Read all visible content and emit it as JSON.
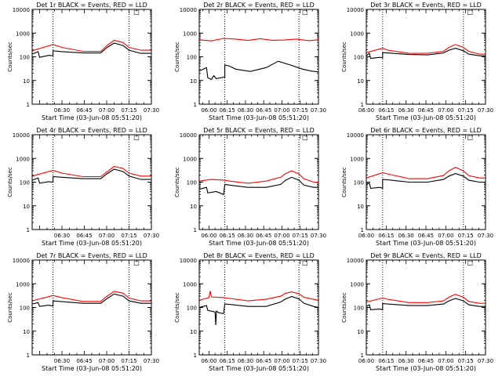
{
  "chart_data": [
    {
      "type": "line",
      "title": "Det 1r BLACK = Events, RED = LLD",
      "xlabel": "Start Time (03-Jun-08 05:51:20)",
      "ylabel": "Counts/sec",
      "x_ticks": [
        "06:30",
        "06:45",
        "07:00",
        "07:15",
        "07:30"
      ],
      "x_range": [
        21.0,
        101.0
      ],
      "xscale": "linear",
      "ylim": [
        1,
        10000
      ],
      "yscale": "log",
      "y_ticks": [
        "1",
        "10",
        "100",
        "1000",
        "10000"
      ],
      "dotted_lines_x": [
        35.0,
        86.0
      ],
      "marker_label": "□",
      "marker_x": 91.0,
      "series": [
        {
          "color": "#ff0000",
          "x": [
            21,
            35,
            41,
            55,
            67,
            71,
            76,
            82,
            86,
            94,
            101
          ],
          "values": [
            180,
            330,
            250,
            170,
            170,
            290,
            500,
            400,
            250,
            190,
            190
          ]
        },
        {
          "color": "#000000",
          "x": [
            21,
            25,
            26,
            32,
            35,
            35,
            41,
            55,
            67,
            71,
            76,
            82,
            86,
            94,
            101
          ],
          "values": [
            130,
            165,
            95,
            115,
            110,
            180,
            165,
            145,
            145,
            240,
            380,
            300,
            190,
            140,
            140
          ]
        }
      ]
    },
    {
      "type": "line",
      "title": "Det 2r BLACK = Events, RED = LLD",
      "xlabel": "Start Time (03-Jun-08 05:51:20)",
      "ylabel": "Counts/sec",
      "x_ticks": [
        "06:00",
        "06:15",
        "06:30",
        "06:45",
        "07:00",
        "07:15",
        "07:30"
      ],
      "x_range": [
        0.0,
        98.0
      ],
      "xscale": "linear",
      "ylim": [
        1,
        10000
      ],
      "yscale": "log",
      "y_ticks": [
        "1",
        "10",
        "100",
        "1000",
        "10000"
      ],
      "dotted_lines_x": [
        21.0,
        82.0
      ],
      "marker_label": "□",
      "marker_x": 87.0,
      "series": [
        {
          "color": "#ff0000",
          "x": [
            0,
            10,
            20,
            30,
            40,
            50,
            60,
            70,
            80,
            90,
            98
          ],
          "values": [
            520,
            470,
            600,
            560,
            490,
            580,
            500,
            510,
            560,
            480,
            520
          ]
        },
        {
          "color": "#000000",
          "x": [
            0,
            6,
            7,
            10,
            12,
            14,
            21,
            21,
            25,
            30,
            42,
            55,
            65,
            75,
            85,
            92,
            98
          ],
          "values": [
            25,
            35,
            13,
            11,
            16,
            12,
            14,
            45,
            40,
            30,
            24,
            35,
            65,
            45,
            30,
            25,
            23
          ]
        }
      ]
    },
    {
      "type": "line",
      "title": "Det 3r BLACK = Events, RED = LLD",
      "xlabel": "Start Time (03-Jun-08 05:51:20)",
      "ylabel": "Counts/sec",
      "x_ticks": [
        "06:00",
        "06:15",
        "06:30",
        "06:45",
        "07:00",
        "07:15",
        "07:30"
      ],
      "x_range": [
        8.67,
        98.67
      ],
      "xscale": "linear",
      "ylim": [
        1,
        10000
      ],
      "yscale": "log",
      "y_ticks": [
        "1",
        "10",
        "100",
        "1000",
        "10000"
      ],
      "dotted_lines_x": [
        21.0,
        82.0
      ],
      "marker_label": "□",
      "marker_x": 87.0,
      "series": [
        {
          "color": "#ff0000",
          "x": [
            8.67,
            21,
            25,
            41,
            55,
            67,
            71,
            76,
            82,
            86,
            94,
            98.67
          ],
          "values": [
            150,
            230,
            190,
            140,
            140,
            170,
            250,
            330,
            250,
            170,
            130,
            130
          ]
        },
        {
          "color": "#000000",
          "x": [
            8.67,
            11,
            12,
            19,
            21,
            21,
            25,
            41,
            55,
            67,
            71,
            76,
            82,
            86,
            94,
            98.67
          ],
          "values": [
            110,
            140,
            85,
            95,
            90,
            150,
            145,
            125,
            120,
            145,
            190,
            230,
            180,
            130,
            110,
            110
          ]
        }
      ]
    },
    {
      "type": "line",
      "title": "Det 4r BLACK = Events, RED = LLD",
      "xlabel": "Start Time (03-Jun-08 05:51:20)",
      "ylabel": "Counts/sec",
      "x_ticks": [
        "06:30",
        "06:45",
        "07:00",
        "07:15",
        "07:30"
      ],
      "x_range": [
        21.0,
        101.0
      ],
      "xscale": "linear",
      "ylim": [
        1,
        10000
      ],
      "yscale": "log",
      "y_ticks": [
        "1",
        "10",
        "100",
        "1000",
        "10000"
      ],
      "dotted_lines_x": [
        35.0,
        86.0
      ],
      "marker_label": "□",
      "marker_x": 91.0,
      "series": [
        {
          "color": "#ff0000",
          "x": [
            21,
            35,
            41,
            55,
            67,
            71,
            76,
            82,
            86,
            94,
            101
          ],
          "values": [
            180,
            310,
            240,
            170,
            170,
            270,
            460,
            380,
            240,
            180,
            180
          ]
        },
        {
          "color": "#000000",
          "x": [
            21,
            25,
            26,
            32,
            35,
            35,
            41,
            55,
            67,
            71,
            76,
            82,
            86,
            94,
            101
          ],
          "values": [
            120,
            150,
            90,
            105,
            100,
            170,
            160,
            140,
            140,
            220,
            350,
            280,
            180,
            130,
            130
          ]
        }
      ]
    },
    {
      "type": "line",
      "title": "Det 5r BLACK = Events, RED = LLD",
      "xlabel": "Start Time (03-Jun-08 05:51:20)",
      "ylabel": "Counts/sec",
      "x_ticks": [
        "06:00",
        "06:15",
        "06:30",
        "06:45",
        "07:00",
        "07:15",
        "07:30"
      ],
      "x_range": [
        0.0,
        98.0
      ],
      "xscale": "linear",
      "ylim": [
        1,
        10000
      ],
      "yscale": "log",
      "y_ticks": [
        "1",
        "10",
        "100",
        "1000",
        "10000"
      ],
      "dotted_lines_x": [
        21.0,
        82.0
      ],
      "marker_label": "□",
      "marker_x": 87.0,
      "series": [
        {
          "color": "#ff0000",
          "x": [
            0,
            10,
            21,
            25,
            40,
            55,
            67,
            71,
            76,
            82,
            86,
            94,
            98
          ],
          "values": [
            110,
            130,
            120,
            110,
            90,
            110,
            160,
            230,
            300,
            220,
            140,
            100,
            100
          ]
        },
        {
          "color": "#000000",
          "x": [
            0,
            6,
            7,
            14,
            20,
            21,
            25,
            40,
            55,
            67,
            71,
            76,
            82,
            86,
            94,
            98
          ],
          "values": [
            50,
            60,
            35,
            40,
            30,
            80,
            75,
            60,
            60,
            80,
            120,
            160,
            120,
            75,
            60,
            60
          ]
        }
      ]
    },
    {
      "type": "line",
      "title": "Det 6r BLACK = Events, RED = LLD",
      "xlabel": "Start Time (03-Jun-08 05:51:20)",
      "ylabel": "Counts/sec",
      "x_ticks": [
        "06:00",
        "06:15",
        "06:30",
        "06:45",
        "07:00",
        "07:15",
        "07:30"
      ],
      "x_range": [
        8.67,
        98.67
      ],
      "xscale": "linear",
      "ylim": [
        1,
        10000
      ],
      "yscale": "log",
      "y_ticks": [
        "1",
        "10",
        "100",
        "1000",
        "10000"
      ],
      "dotted_lines_x": [
        21.0,
        82.0
      ],
      "marker_label": "□",
      "marker_x": 87.0,
      "series": [
        {
          "color": "#ff0000",
          "x": [
            8.67,
            21,
            25,
            41,
            55,
            67,
            71,
            76,
            82,
            86,
            94,
            98.67
          ],
          "values": [
            150,
            250,
            220,
            140,
            140,
            190,
            300,
            420,
            300,
            190,
            150,
            150
          ]
        },
        {
          "color": "#000000",
          "x": [
            8.67,
            11,
            12,
            19,
            21,
            21,
            25,
            41,
            55,
            67,
            71,
            76,
            82,
            86,
            94,
            98.67
          ],
          "values": [
            80,
            90,
            55,
            60,
            55,
            130,
            125,
            100,
            100,
            130,
            180,
            230,
            180,
            120,
            100,
            100
          ]
        }
      ]
    },
    {
      "type": "line",
      "title": "Det 7r BLACK = Events, RED = LLD",
      "xlabel": "Start Time (03-Jun-08 05:51:20)",
      "ylabel": "Counts/sec",
      "x_ticks": [
        "06:30",
        "06:45",
        "07:00",
        "07:15",
        "07:30"
      ],
      "x_range": [
        21.0,
        101.0
      ],
      "xscale": "linear",
      "ylim": [
        1,
        10000
      ],
      "yscale": "log",
      "y_ticks": [
        "1",
        "10",
        "100",
        "1000",
        "10000"
      ],
      "dotted_lines_x": [
        35.0,
        86.0
      ],
      "marker_label": "□",
      "marker_x": 91.0,
      "series": [
        {
          "color": "#ff0000",
          "x": [
            21,
            35,
            41,
            55,
            67,
            71,
            76,
            82,
            86,
            94,
            101
          ],
          "values": [
            190,
            320,
            260,
            180,
            180,
            290,
            480,
            400,
            250,
            190,
            190
          ]
        },
        {
          "color": "#000000",
          "x": [
            21,
            25,
            26,
            32,
            35,
            35,
            41,
            55,
            67,
            71,
            76,
            82,
            86,
            94,
            101
          ],
          "values": [
            140,
            160,
            110,
            125,
            115,
            190,
            175,
            150,
            150,
            230,
            370,
            300,
            190,
            150,
            150
          ]
        }
      ]
    },
    {
      "type": "line",
      "title": "Det 8r BLACK = Events, RED = LLD",
      "xlabel": "Start Time (03-Jun-08 05:51:20)",
      "ylabel": "Counts/sec",
      "x_ticks": [
        "06:00",
        "06:15",
        "06:30",
        "06:45",
        "07:00",
        "07:15",
        "07:30"
      ],
      "x_range": [
        0.0,
        98.0
      ],
      "xscale": "linear",
      "ylim": [
        1,
        10000
      ],
      "yscale": "log",
      "y_ticks": [
        "1",
        "10",
        "100",
        "1000",
        "10000"
      ],
      "dotted_lines_x": [
        21.0,
        82.0
      ],
      "marker_label": "□",
      "marker_x": 87.0,
      "series": [
        {
          "color": "#ff0000",
          "x": [
            0,
            8,
            9,
            10,
            20,
            25,
            40,
            55,
            67,
            71,
            76,
            82,
            86,
            94,
            98
          ],
          "values": [
            200,
            260,
            500,
            280,
            260,
            240,
            190,
            220,
            300,
            400,
            450,
            380,
            270,
            220,
            200
          ]
        },
        {
          "color": "#000000",
          "x": [
            0,
            6,
            7,
            13,
            13.6,
            14.2,
            16,
            20,
            21,
            25,
            40,
            55,
            67,
            71,
            76,
            82,
            86,
            94,
            98
          ],
          "values": [
            100,
            120,
            75,
            65,
            18,
            70,
            60,
            55,
            140,
            135,
            110,
            110,
            170,
            230,
            290,
            230,
            150,
            110,
            100
          ]
        }
      ]
    },
    {
      "type": "line",
      "title": "Det 9r BLACK = Events, RED = LLD",
      "xlabel": "Start Time (03-Jun-08 05:51:20)",
      "ylabel": "Counts/sec",
      "x_ticks": [
        "06:00",
        "06:15",
        "06:30",
        "06:45",
        "07:00",
        "07:15",
        "07:30"
      ],
      "x_range": [
        8.67,
        98.67
      ],
      "xscale": "linear",
      "ylim": [
        1,
        10000
      ],
      "yscale": "log",
      "y_ticks": [
        "1",
        "10",
        "100",
        "1000",
        "10000"
      ],
      "dotted_lines_x": [
        21.0,
        82.0
      ],
      "marker_label": "□",
      "marker_x": 87.0,
      "series": [
        {
          "color": "#ff0000",
          "x": [
            8.67,
            21,
            25,
            41,
            55,
            67,
            71,
            76,
            82,
            86,
            94,
            98.67
          ],
          "values": [
            170,
            250,
            220,
            160,
            160,
            190,
            270,
            360,
            270,
            180,
            150,
            150
          ]
        },
        {
          "color": "#000000",
          "x": [
            8.67,
            11,
            12,
            19,
            21,
            21,
            25,
            41,
            55,
            67,
            71,
            76,
            82,
            86,
            94,
            98.67
          ],
          "values": [
            110,
            130,
            80,
            85,
            80,
            145,
            140,
            120,
            120,
            140,
            190,
            240,
            190,
            130,
            110,
            110
          ]
        }
      ]
    }
  ]
}
